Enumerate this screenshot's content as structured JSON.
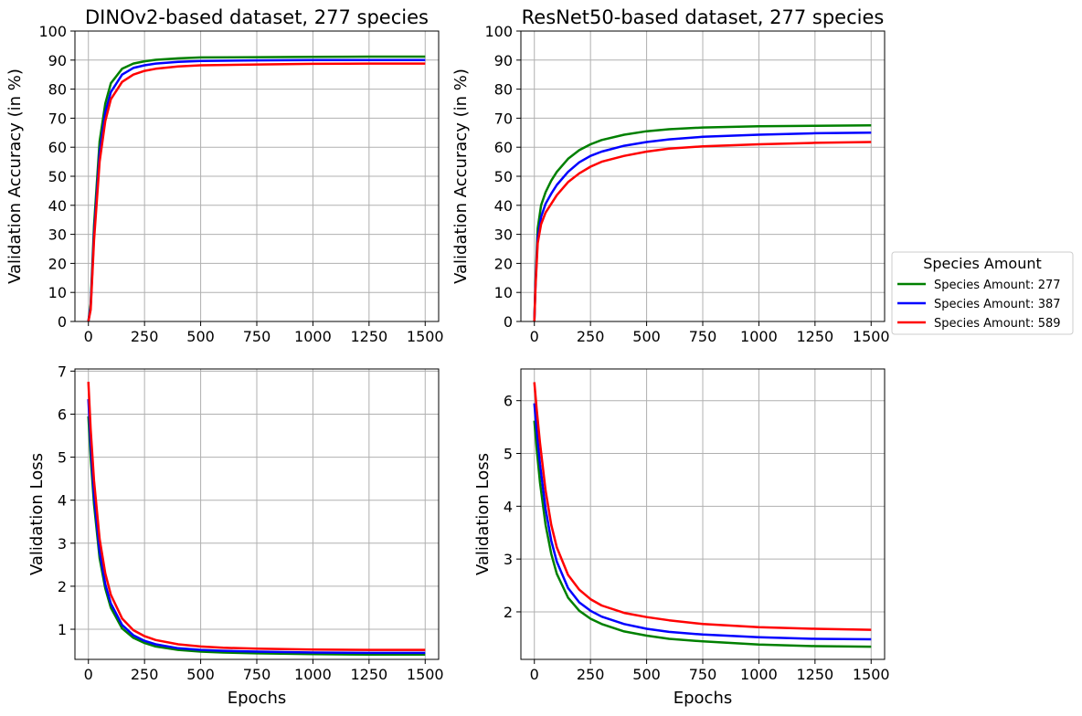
{
  "chart_data": [
    {
      "type": "line",
      "title": "DINOv2-based dataset, 277 species",
      "xlabel": "",
      "ylabel": "Validation Accuracy (in %)",
      "xlim": [
        -60,
        1560
      ],
      "ylim": [
        0,
        100
      ],
      "xticks": [
        0,
        250,
        500,
        750,
        1000,
        1250,
        1500
      ],
      "yticks": [
        0,
        10,
        20,
        30,
        40,
        50,
        60,
        70,
        80,
        90,
        100
      ],
      "grid": true,
      "series": [
        {
          "name": "Species Amount: 277",
          "color": "#008000",
          "x": [
            0,
            10,
            25,
            50,
            75,
            100,
            150,
            200,
            250,
            300,
            400,
            500,
            750,
            1000,
            1250,
            1500
          ],
          "y": [
            0,
            6,
            33,
            62,
            75,
            82,
            87,
            88.8,
            89.6,
            90.1,
            90.6,
            90.9,
            91.0,
            91.1,
            91.2,
            91.2
          ]
        },
        {
          "name": "Species Amount: 387",
          "color": "#0000ff",
          "x": [
            0,
            10,
            25,
            50,
            75,
            100,
            150,
            200,
            250,
            300,
            400,
            500,
            750,
            1000,
            1250,
            1500
          ],
          "y": [
            0,
            5,
            30,
            58,
            72,
            79,
            85,
            87.3,
            88.2,
            88.8,
            89.4,
            89.7,
            89.9,
            90.0,
            90.0,
            90.0
          ]
        },
        {
          "name": "Species Amount: 589",
          "color": "#ff0000",
          "x": [
            0,
            10,
            25,
            50,
            75,
            100,
            150,
            200,
            250,
            300,
            400,
            500,
            750,
            1000,
            1250,
            1500
          ],
          "y": [
            0,
            4,
            28,
            55,
            69,
            76.5,
            82.5,
            85,
            86.3,
            87,
            87.8,
            88.2,
            88.5,
            88.7,
            88.8,
            88.8
          ]
        }
      ]
    },
    {
      "type": "line",
      "title": "ResNet50-based dataset, 277 species",
      "xlabel": "",
      "ylabel": "Validation Accuracy (in %)",
      "xlim": [
        -60,
        1560
      ],
      "ylim": [
        0,
        100
      ],
      "xticks": [
        0,
        250,
        500,
        750,
        1000,
        1250,
        1500
      ],
      "yticks": [
        0,
        10,
        20,
        30,
        40,
        50,
        60,
        70,
        80,
        90,
        100
      ],
      "grid": true,
      "series": [
        {
          "name": "Species Amount: 277",
          "color": "#008000",
          "x": [
            0,
            5,
            15,
            30,
            50,
            75,
            100,
            150,
            200,
            250,
            300,
            400,
            500,
            600,
            750,
            1000,
            1250,
            1500
          ],
          "y": [
            0,
            14,
            32,
            40,
            44.5,
            48.5,
            51.5,
            56,
            59,
            61,
            62.5,
            64.3,
            65.5,
            66.2,
            66.8,
            67.2,
            67.4,
            67.5
          ]
        },
        {
          "name": "Species Amount: 387",
          "color": "#0000ff",
          "x": [
            0,
            5,
            15,
            30,
            50,
            75,
            100,
            150,
            200,
            250,
            300,
            400,
            500,
            600,
            750,
            1000,
            1250,
            1500
          ],
          "y": [
            0,
            13,
            29,
            36,
            40.5,
            44,
            47,
            51.5,
            54.8,
            57,
            58.5,
            60.5,
            61.8,
            62.7,
            63.6,
            64.3,
            64.8,
            65.0
          ]
        },
        {
          "name": "Species Amount: 589",
          "color": "#ff0000",
          "x": [
            0,
            5,
            15,
            30,
            50,
            75,
            100,
            150,
            200,
            250,
            300,
            400,
            500,
            600,
            750,
            1000,
            1250,
            1500
          ],
          "y": [
            0,
            12,
            27,
            33.5,
            37.5,
            40.5,
            43.5,
            48,
            51,
            53.3,
            55,
            57,
            58.5,
            59.5,
            60.3,
            61,
            61.5,
            61.8
          ]
        }
      ]
    },
    {
      "type": "line",
      "title": "",
      "xlabel": "Epochs",
      "ylabel": "Validation Loss",
      "xlim": [
        -60,
        1560
      ],
      "ylim": [
        0.3,
        7.05
      ],
      "xticks": [
        0,
        250,
        500,
        750,
        1000,
        1250,
        1500
      ],
      "yticks": [
        1,
        2,
        3,
        4,
        5,
        6,
        7
      ],
      "grid": true,
      "series": [
        {
          "name": "Species Amount: 277",
          "color": "#008000",
          "x": [
            0,
            10,
            25,
            50,
            75,
            100,
            150,
            200,
            250,
            300,
            400,
            500,
            600,
            750,
            1000,
            1250,
            1500
          ],
          "y": [
            5.95,
            5.0,
            3.9,
            2.65,
            1.95,
            1.5,
            1.02,
            0.8,
            0.68,
            0.6,
            0.52,
            0.48,
            0.46,
            0.44,
            0.42,
            0.41,
            0.41
          ]
        },
        {
          "name": "Species Amount: 387",
          "color": "#0000ff",
          "x": [
            0,
            10,
            25,
            50,
            75,
            100,
            150,
            200,
            250,
            300,
            400,
            500,
            600,
            750,
            1000,
            1250,
            1500
          ],
          "y": [
            6.35,
            5.3,
            4.1,
            2.8,
            2.05,
            1.6,
            1.1,
            0.86,
            0.73,
            0.65,
            0.56,
            0.52,
            0.5,
            0.48,
            0.46,
            0.45,
            0.45
          ]
        },
        {
          "name": "Species Amount: 589",
          "color": "#ff0000",
          "x": [
            0,
            10,
            25,
            50,
            75,
            100,
            150,
            200,
            250,
            300,
            400,
            500,
            600,
            750,
            1000,
            1250,
            1500
          ],
          "y": [
            6.75,
            5.65,
            4.45,
            3.1,
            2.3,
            1.8,
            1.25,
            0.98,
            0.84,
            0.75,
            0.65,
            0.6,
            0.57,
            0.55,
            0.53,
            0.52,
            0.52
          ]
        }
      ]
    },
    {
      "type": "line",
      "title": "",
      "xlabel": "Epochs",
      "ylabel": "Validation Loss",
      "xlim": [
        -60,
        1560
      ],
      "ylim": [
        1.1,
        6.6
      ],
      "xticks": [
        0,
        250,
        500,
        750,
        1000,
        1250,
        1500
      ],
      "yticks": [
        2,
        3,
        4,
        5,
        6
      ],
      "grid": true,
      "series": [
        {
          "name": "Species Amount: 277",
          "color": "#008000",
          "x": [
            0,
            10,
            25,
            50,
            75,
            100,
            150,
            200,
            250,
            300,
            400,
            500,
            600,
            750,
            1000,
            1250,
            1500
          ],
          "y": [
            5.62,
            5.1,
            4.45,
            3.65,
            3.1,
            2.72,
            2.27,
            2.02,
            1.87,
            1.77,
            1.63,
            1.55,
            1.49,
            1.44,
            1.38,
            1.35,
            1.34
          ]
        },
        {
          "name": "Species Amount: 387",
          "color": "#0000ff",
          "x": [
            0,
            10,
            25,
            50,
            75,
            100,
            150,
            200,
            250,
            300,
            400,
            500,
            600,
            750,
            1000,
            1250,
            1500
          ],
          "y": [
            5.95,
            5.45,
            4.8,
            3.95,
            3.35,
            2.95,
            2.45,
            2.18,
            2.02,
            1.91,
            1.77,
            1.68,
            1.62,
            1.57,
            1.52,
            1.49,
            1.48
          ]
        },
        {
          "name": "Species Amount: 589",
          "color": "#ff0000",
          "x": [
            0,
            10,
            25,
            50,
            75,
            100,
            150,
            200,
            250,
            300,
            400,
            500,
            600,
            750,
            1000,
            1250,
            1500
          ],
          "y": [
            6.35,
            5.85,
            5.2,
            4.3,
            3.65,
            3.22,
            2.7,
            2.42,
            2.24,
            2.12,
            1.98,
            1.9,
            1.84,
            1.77,
            1.71,
            1.68,
            1.66
          ]
        }
      ]
    }
  ],
  "legend": {
    "title": "Species Amount",
    "position": "right",
    "items": [
      {
        "label": "Species Amount: 277",
        "color": "#008000"
      },
      {
        "label": "Species Amount: 387",
        "color": "#0000ff"
      },
      {
        "label": "Species Amount: 589",
        "color": "#ff0000"
      }
    ]
  }
}
